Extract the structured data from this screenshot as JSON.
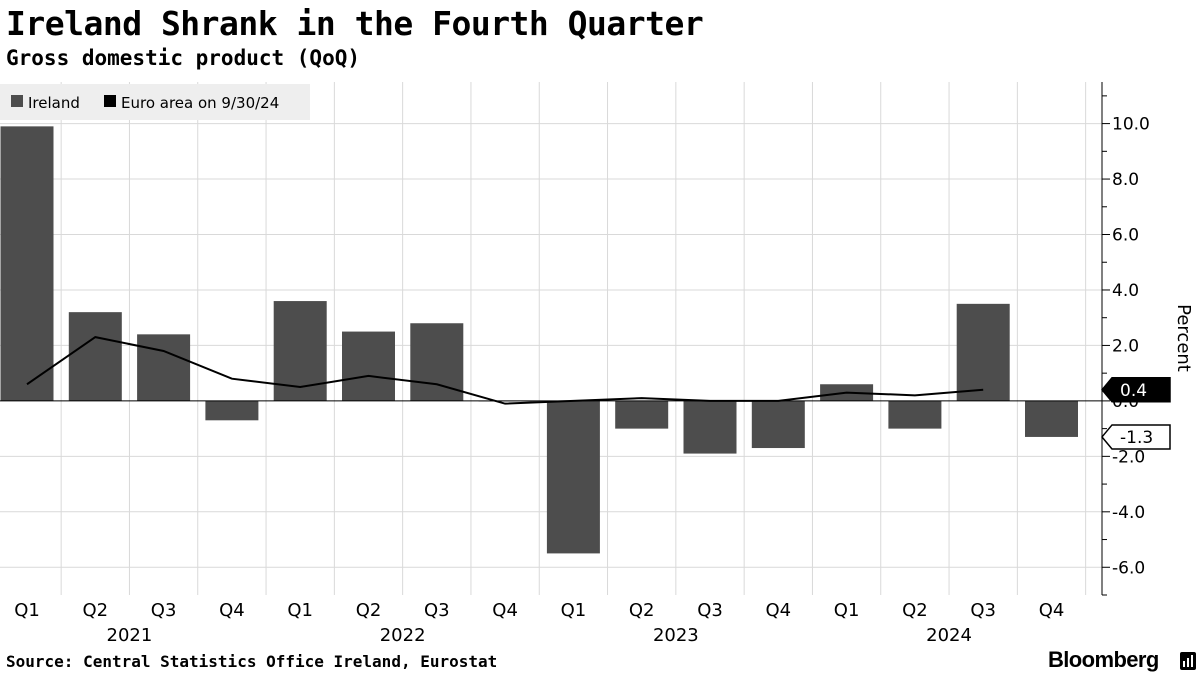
{
  "header": {
    "title": "Ireland Shrank in the Fourth Quarter",
    "subtitle": "Gross domestic product (QoQ)"
  },
  "footer": {
    "source": "Source: Central Statistics Office Ireland, Eurostat",
    "brand": "Bloomberg"
  },
  "colors": {
    "bar": "#4d4d4d",
    "line": "#000000",
    "grid": "#d9d9d9",
    "legend_bg": "#eeeeee"
  },
  "chart_data": {
    "type": "bar",
    "ylabel": "Percent",
    "ylim": [
      -7,
      11.5
    ],
    "y_ticks": [
      10,
      8,
      6,
      4,
      2,
      0,
      -2,
      -4,
      -6
    ],
    "y_tick_labels": [
      "10.0",
      "8.0",
      "6.0",
      "4.0",
      "2.0",
      "0.0",
      "-2.0",
      "-4.0",
      "-6.0"
    ],
    "categories": [
      "Q1",
      "Q2",
      "Q3",
      "Q4",
      "Q1",
      "Q2",
      "Q3",
      "Q4",
      "Q1",
      "Q2",
      "Q3",
      "Q4",
      "Q1",
      "Q2",
      "Q3",
      "Q4"
    ],
    "year_labels": [
      {
        "label": "2021",
        "start": 0,
        "end": 3
      },
      {
        "label": "2022",
        "start": 4,
        "end": 7
      },
      {
        "label": "2023",
        "start": 8,
        "end": 11
      },
      {
        "label": "2024",
        "start": 12,
        "end": 15
      }
    ],
    "series": [
      {
        "name": "Ireland",
        "kind": "bar",
        "values": [
          9.9,
          3.2,
          2.4,
          -0.7,
          3.6,
          2.5,
          2.8,
          0.0,
          -5.5,
          -1.0,
          -1.9,
          -1.7,
          0.6,
          -1.0,
          3.5,
          -1.3
        ]
      },
      {
        "name": "Euro area on 9/30/24",
        "kind": "line",
        "values": [
          0.6,
          2.3,
          1.8,
          0.8,
          0.5,
          0.9,
          0.6,
          -0.1,
          0.0,
          0.1,
          0.0,
          0.0,
          0.3,
          0.2,
          0.4,
          null
        ]
      }
    ],
    "callouts": [
      {
        "label": "0.4",
        "value": 0.4,
        "style": "filled"
      },
      {
        "label": "-1.3",
        "value": -1.3,
        "style": "outlined"
      }
    ],
    "legend_placement": "top-left",
    "grid": true
  }
}
